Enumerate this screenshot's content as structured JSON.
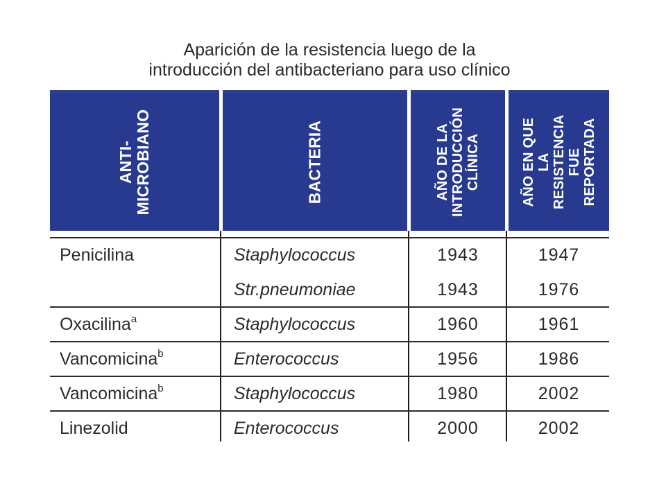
{
  "title": {
    "line1": "Aparición de la resistencia luego de la",
    "line2": "introducción del antibacteriano para uso clínico"
  },
  "table": {
    "header_color": "#273a8f",
    "headers": [
      "ANTI-\nMICROBIANO",
      "BACTERIA",
      "AÑO DE LA\nINTRODUCCIÓN\nCLÍNICA",
      "AÑO EN QUE LA\nRESISTENCIA FUE\nREPORTADA"
    ],
    "rows": [
      {
        "antimicrobiano": "Penicilina",
        "sup": "",
        "bacteria": "Staphylococcus",
        "introduccion": "1943",
        "resistencia": "1947"
      },
      {
        "antimicrobiano": "",
        "sup": "",
        "bacteria": "Str.pneumoniae",
        "introduccion": "1943",
        "resistencia": "1976"
      },
      {
        "antimicrobiano": "Oxacilina",
        "sup": "a",
        "bacteria": "Staphylococcus",
        "introduccion": "1960",
        "resistencia": "1961"
      },
      {
        "antimicrobiano": "Vancomicina",
        "sup": "b",
        "bacteria": "Enterococcus",
        "introduccion": "1956",
        "resistencia": "1986"
      },
      {
        "antimicrobiano": "Vancomicina",
        "sup": "b",
        "bacteria": "Staphylococcus",
        "introduccion": "1980",
        "resistencia": "2002"
      },
      {
        "antimicrobiano": "Linezolid",
        "sup": "",
        "bacteria": "Enterococcus",
        "introduccion": "2000",
        "resistencia": "2002"
      }
    ]
  }
}
